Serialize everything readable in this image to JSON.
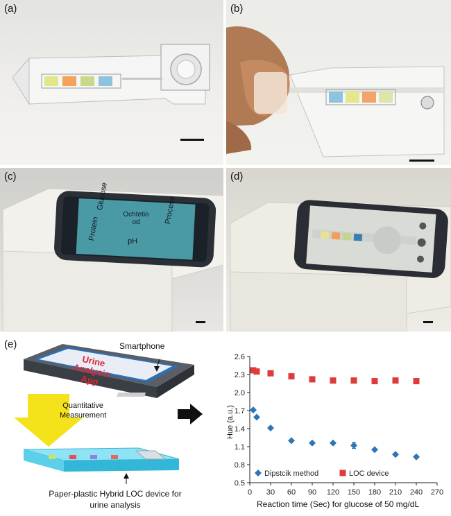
{
  "panels": {
    "a": {
      "label": "(a)"
    },
    "b": {
      "label": "(b)"
    },
    "c": {
      "label": "(c)",
      "screen_tiles": [
        "Glucose",
        "Ochtetio od",
        "Protein",
        "pH",
        "Process"
      ]
    },
    "d": {
      "label": "(d)"
    },
    "e": {
      "label": "(e)",
      "smartphone_label": "Smartphone",
      "app_text": [
        "Urine",
        "Analysis",
        "App"
      ],
      "measurement_text": [
        "Quantitative",
        "Measurement"
      ],
      "device_caption": [
        "Paper-plastic Hybrid LOC device for",
        "urine analysis"
      ]
    }
  },
  "chart_data": {
    "type": "scatter",
    "xlabel": "Reaction time (Sec) for glucose of 50 mg/dL",
    "ylabel": "Hue (a.u.)",
    "xlim": [
      0,
      270
    ],
    "ylim": [
      0.5,
      2.6
    ],
    "xticks": [
      0,
      30,
      60,
      90,
      120,
      150,
      180,
      210,
      240,
      270
    ],
    "yticks": [
      0.5,
      0.8,
      1.1,
      1.4,
      1.7,
      2.0,
      2.3,
      2.6
    ],
    "ytick_labels": [
      "0.5",
      "0.8",
      "1.1",
      "1.4",
      "1.7",
      "2.0",
      "2.3",
      "2.6"
    ],
    "legend_position": "bottom",
    "series": [
      {
        "name": "Dipstcik method",
        "marker": "diamond",
        "color": "#2e75b6",
        "x": [
          5,
          10,
          30,
          60,
          90,
          120,
          150,
          180,
          210,
          240
        ],
        "y": [
          1.71,
          1.59,
          1.41,
          1.2,
          1.16,
          1.16,
          1.12,
          1.05,
          0.97,
          0.93
        ],
        "err": [
          0,
          0,
          0,
          0,
          0,
          0,
          0.05,
          0,
          0,
          0
        ]
      },
      {
        "name": "LOC device",
        "marker": "square",
        "color": "#e03a3a",
        "x": [
          5,
          10,
          30,
          60,
          90,
          120,
          150,
          180,
          210,
          240
        ],
        "y": [
          2.37,
          2.35,
          2.32,
          2.27,
          2.22,
          2.2,
          2.2,
          2.19,
          2.2,
          2.19
        ],
        "err": [
          0,
          0,
          0,
          0,
          0,
          0,
          0,
          0,
          0,
          0
        ]
      }
    ]
  }
}
